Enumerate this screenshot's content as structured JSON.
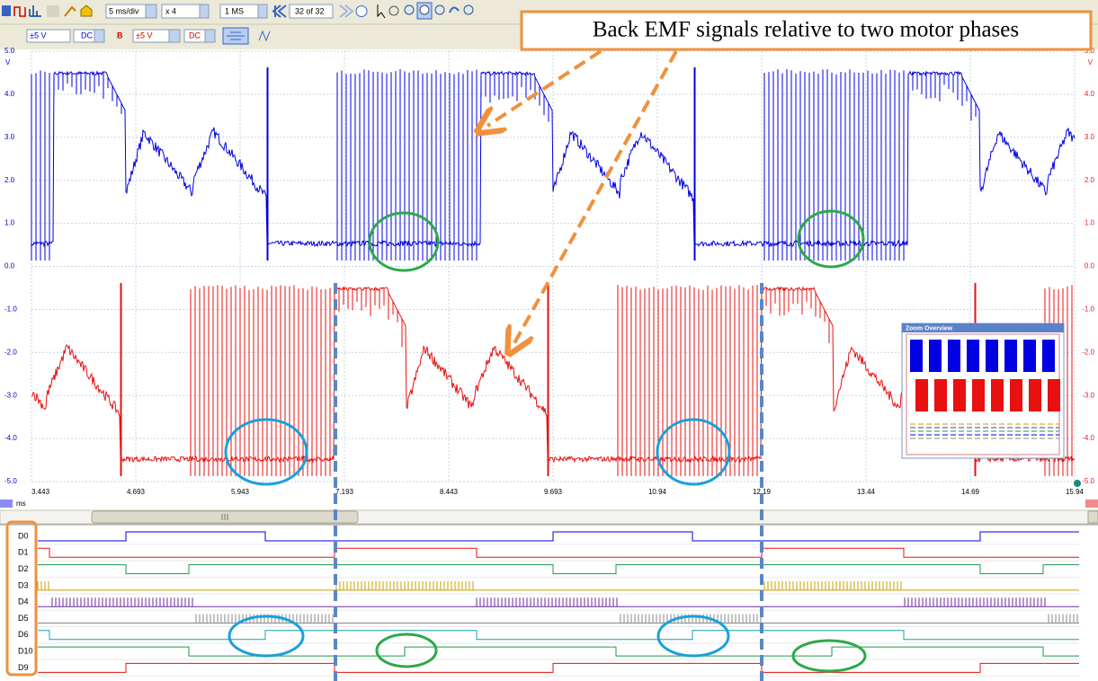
{
  "toolbar": {
    "timebase": "5 ms/div",
    "zoom": "x 4",
    "samples": "1 MS",
    "buffer": "32 of 32",
    "channel_a": {
      "range": "±5 V",
      "coupling": "DC"
    },
    "channel_b": {
      "label": "B",
      "range": "±5 V",
      "coupling": "DC"
    }
  },
  "annotation": "Back EMF signals relative to two motor phases",
  "scope": {
    "left_axis": {
      "unit": "V",
      "labels": [
        "5.0",
        "4.0",
        "3.0",
        "2.0",
        "1.0",
        "0.0",
        "-1.0",
        "-2.0",
        "-3.0",
        "-4.0",
        "-5.0"
      ]
    },
    "right_axis": {
      "unit": "V",
      "labels": [
        "5.0",
        "4.0",
        "3.0",
        "2.0",
        "1.0",
        "0.0",
        "-1.0",
        "-2.0",
        "-3.0",
        "-4.0",
        "-5.0"
      ]
    },
    "time_axis": {
      "unit": "ms",
      "labels": [
        "3.443",
        "4.693",
        "5.943",
        "7.193",
        "8.443",
        "9.693",
        "10.94",
        "12.19",
        "13.44",
        "14.69",
        "15.94"
      ]
    }
  },
  "zoom_overview": {
    "title": "Zoom Overview"
  },
  "digital_channels": [
    "D0",
    "D1",
    "D2",
    "D3",
    "D4",
    "D5",
    "D6",
    "D10",
    "D9"
  ]
}
